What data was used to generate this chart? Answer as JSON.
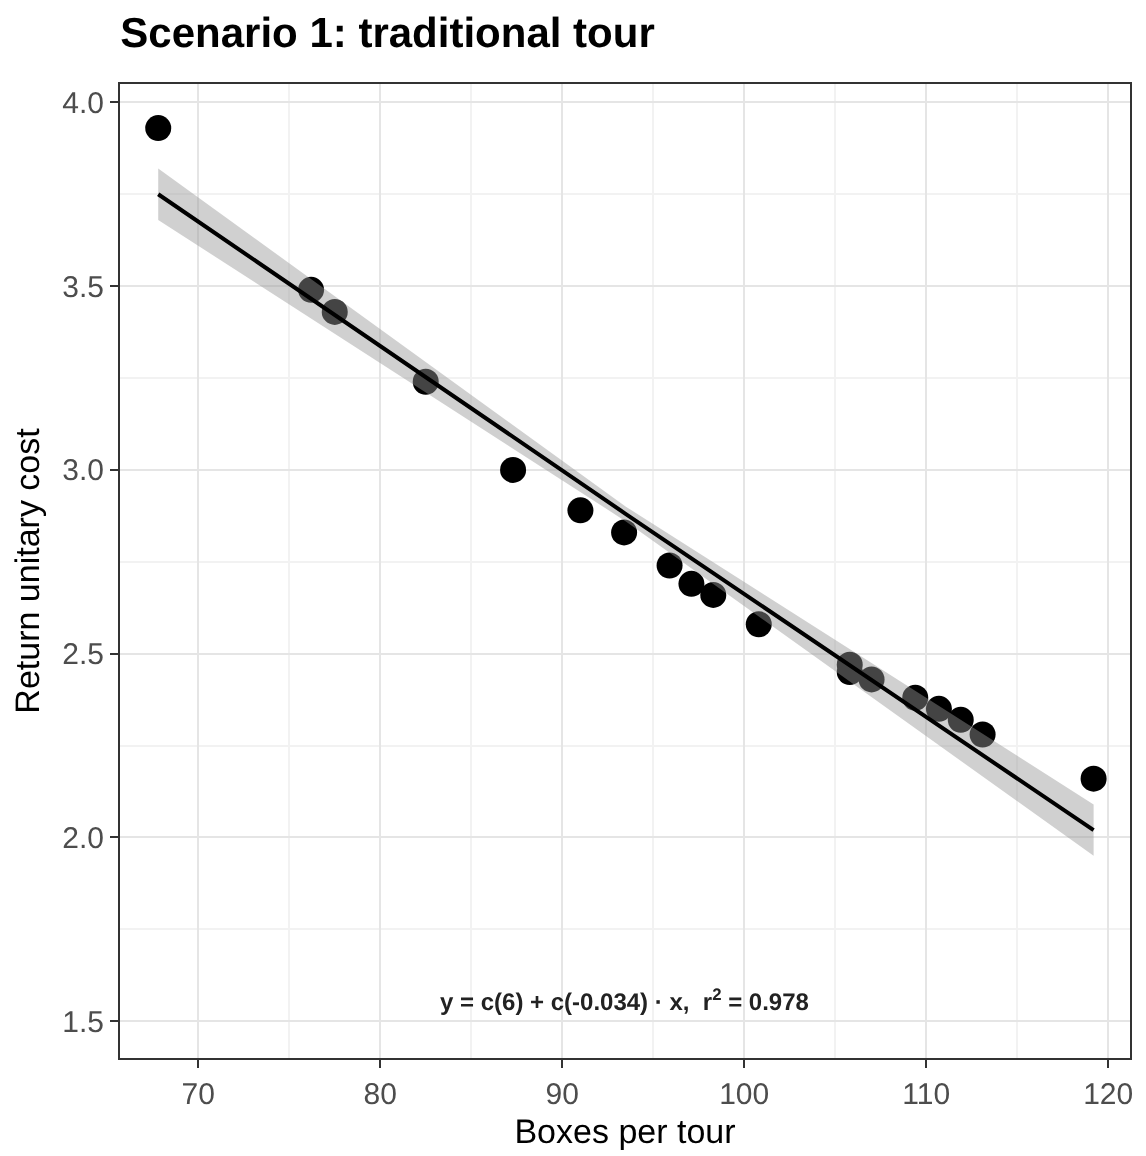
{
  "chart_data": {
    "type": "scatter",
    "title": "Scenario 1: traditional tour",
    "xlabel": "Boxes per tour",
    "ylabel": "Return unitary cost",
    "xlim": [
      65.7,
      121.2
    ],
    "ylim": [
      1.4,
      4.05
    ],
    "xticks": [
      70,
      80,
      90,
      100,
      110,
      120
    ],
    "yticks": [
      1.5,
      {
        "value": 2,
        "label": "2.0"
      },
      2.5,
      {
        "value": 3,
        "label": "3.0"
      },
      3.5,
      {
        "value": 4,
        "label": "4.0"
      }
    ],
    "grid": true,
    "marker": "circle",
    "series": [
      {
        "color": "#000000",
        "x": [
          67.8,
          76.2,
          77.5,
          82.5,
          87.3,
          91.0,
          93.4,
          95.9,
          97.1,
          98.3,
          100.8,
          105.8,
          105.8,
          107.0,
          109.4,
          110.7,
          111.9,
          113.1,
          119.2
        ],
        "values": [
          3.93,
          3.49,
          3.43,
          3.24,
          3.0,
          2.89,
          2.83,
          2.74,
          2.69,
          2.66,
          2.58,
          2.47,
          2.45,
          2.43,
          2.38,
          2.35,
          2.32,
          2.28,
          2.16
        ]
      },
      {
        "type": "line",
        "color": "#000000",
        "marker": "none",
        "line_style": "solid",
        "x": [
          67.8,
          93.5,
          119.2
        ],
        "values": [
          3.75,
          2.88,
          2.02
        ],
        "lower": [
          3.68,
          2.86,
          1.95
        ],
        "upper": [
          3.82,
          2.9,
          2.09
        ]
      }
    ],
    "annotations": [
      "y = c(6) + c(-0.034) · x,  r$^{2}$ = 0.978"
    ]
  }
}
